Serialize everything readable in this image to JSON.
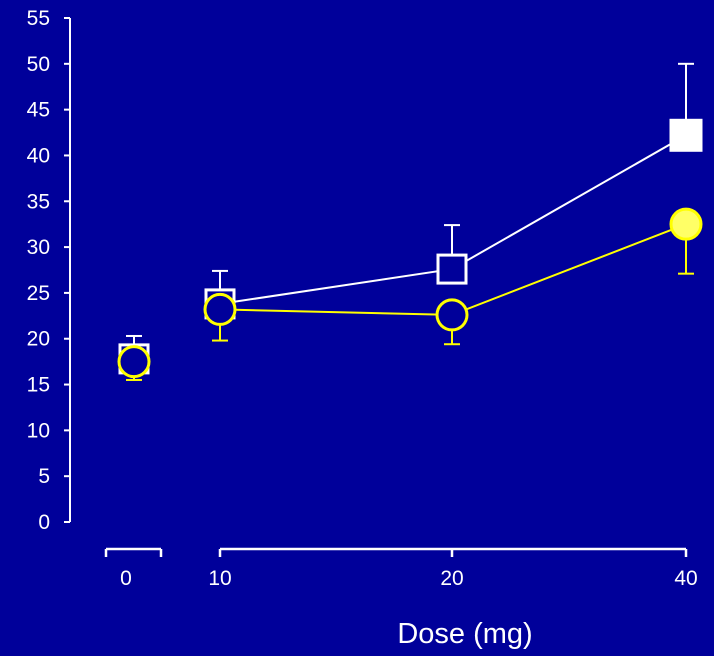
{
  "chart_data": {
    "type": "line",
    "xlabel": "Dose (mg)",
    "ylabel": "",
    "ylim": [
      0,
      55
    ],
    "yticks": [
      "0",
      "5",
      "10",
      "15",
      "20",
      "25",
      "30",
      "35",
      "40",
      "45",
      "50",
      "55"
    ],
    "x_categories": [
      "0",
      "10",
      "20",
      "40"
    ],
    "grid": false,
    "legend": "none",
    "series": [
      {
        "marker": "square",
        "color": "#ffffff",
        "fill": "#00009a",
        "points": [
          {
            "x": "0",
            "y": 17.8,
            "err_up": 2.5
          },
          {
            "x": "10",
            "y": 23.8,
            "err_up": 3.6
          },
          {
            "x": "20",
            "y": 27.6,
            "err_up": 4.8
          },
          {
            "x": "40",
            "y": 42.2,
            "err_up": 7.8
          }
        ]
      },
      {
        "marker": "circle",
        "color": "#ffff00",
        "fill": "#00009a",
        "fill_last": "#ffff66",
        "points": [
          {
            "x": "0",
            "y": 17.5,
            "err_down": 2.0
          },
          {
            "x": "10",
            "y": 23.2,
            "err_down": 3.4
          },
          {
            "x": "20",
            "y": 22.6,
            "err_down": 3.2
          },
          {
            "x": "40",
            "y": 32.5,
            "err_down": 5.4
          }
        ]
      }
    ]
  }
}
